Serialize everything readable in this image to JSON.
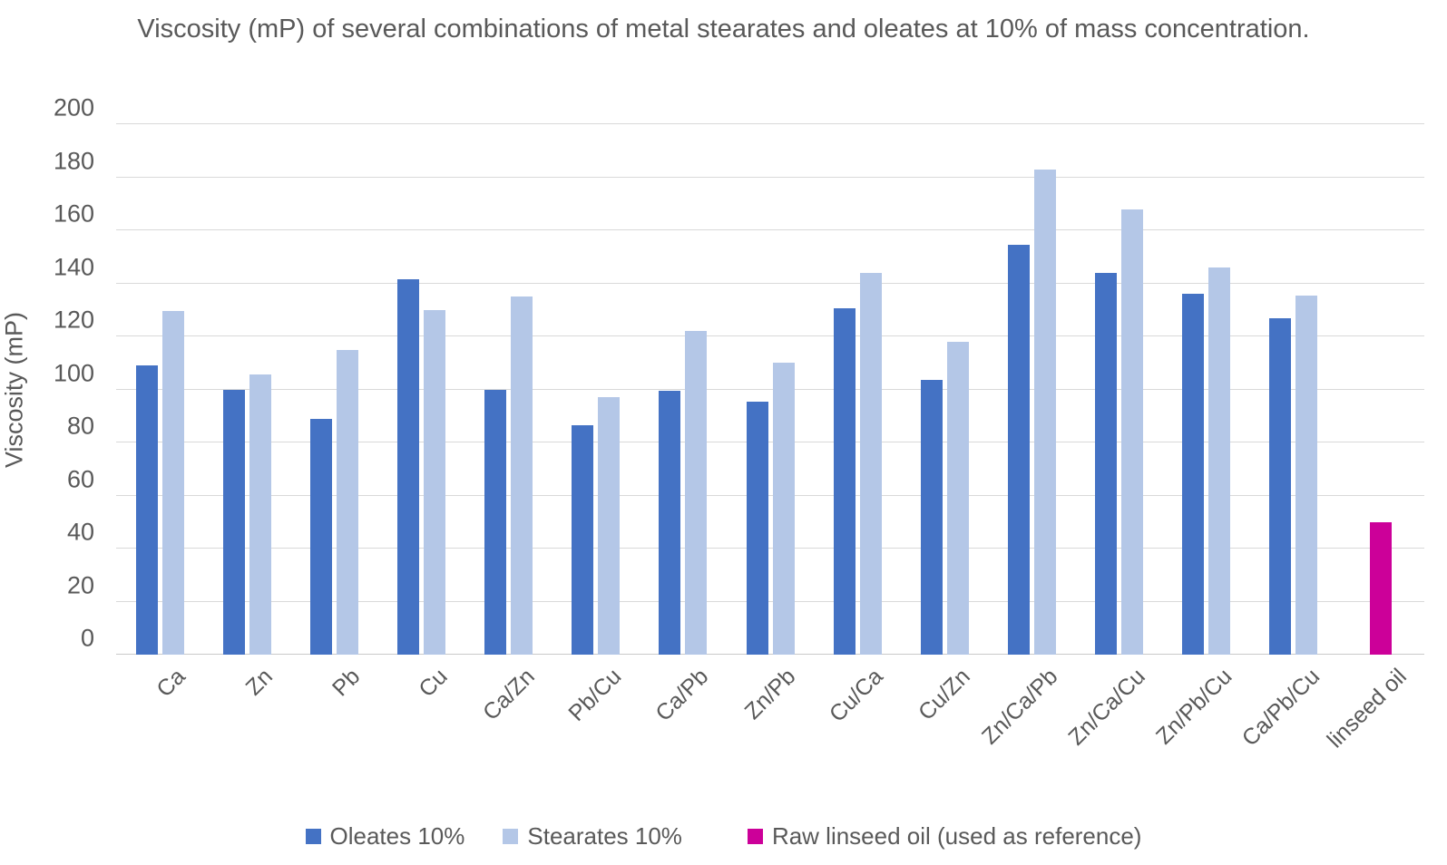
{
  "title": "Viscosity (mP) of several combinations of metal stearates and oleates at 10% of mass concentration.",
  "y_axis": {
    "label": "Viscosity (mP)",
    "min": 0,
    "max": 200,
    "tick_step": 20,
    "ticks": [
      0,
      20,
      40,
      60,
      80,
      100,
      120,
      140,
      160,
      180,
      200
    ]
  },
  "colors": {
    "oleates": "#4472C4",
    "stearates": "#B4C7E7",
    "linseed": "#CC0099",
    "text": "#595959",
    "gridline": "#D9D9D9"
  },
  "legend": [
    {
      "label": "Oleates 10%",
      "color": "#4472C4"
    },
    {
      "label": "Stearates 10%",
      "color": "#B4C7E7"
    },
    {
      "label": "Raw linseed oil (used as reference)",
      "color": "#CC0099"
    }
  ],
  "chart_data": {
    "type": "bar",
    "title": "Viscosity (mP) of several combinations of metal stearates and oleates at 10% of mass concentration.",
    "xlabel": "",
    "ylabel": "Viscosity (mP)",
    "ylim": [
      0,
      200
    ],
    "grid": true,
    "legend_position": "bottom",
    "categories": [
      "Ca",
      "Zn",
      "Pb",
      "Cu",
      "Ca/Zn",
      "Pb/Cu",
      "Ca/Pb",
      "Zn/Pb",
      "Cu/Ca",
      "Cu/Zn",
      "Zn/Ca/Pb",
      "Zn/Ca/Cu",
      "Zn/Pb/Cu",
      "Ca/Pb/Cu",
      "linseed oil"
    ],
    "series": [
      {
        "name": "Oleates 10%",
        "color": "#4472C4",
        "values": [
          109,
          100,
          89,
          141.5,
          100,
          86.5,
          99.5,
          95.5,
          130.5,
          103.5,
          154.5,
          144,
          136,
          127,
          null
        ]
      },
      {
        "name": "Stearates 10%",
        "color": "#B4C7E7",
        "values": [
          129.5,
          105.5,
          115,
          130,
          135,
          97,
          122,
          110,
          144,
          118,
          183,
          168,
          146,
          135.5,
          null
        ]
      },
      {
        "name": "Raw linseed oil (used as reference)",
        "color": "#CC0099",
        "values": [
          null,
          null,
          null,
          null,
          null,
          null,
          null,
          null,
          null,
          null,
          null,
          null,
          null,
          null,
          50
        ]
      }
    ]
  }
}
